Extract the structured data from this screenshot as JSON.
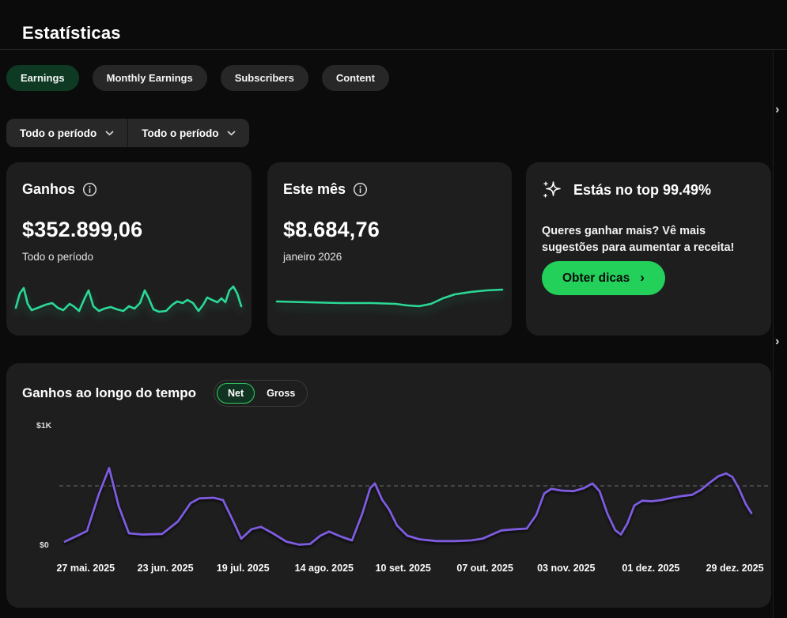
{
  "page": {
    "title": "Estatísticas"
  },
  "tabs": [
    {
      "label": "Earnings",
      "active": true
    },
    {
      "label": "Monthly Earnings",
      "active": false
    },
    {
      "label": "Subscribers",
      "active": false
    },
    {
      "label": "Content",
      "active": false
    }
  ],
  "filters": [
    {
      "label": "Todo o período"
    },
    {
      "label": "Todo o período"
    }
  ],
  "cards": {
    "earnings": {
      "title": "Ganhos",
      "value": "$352.899,06",
      "subtitle": "Todo o período"
    },
    "month": {
      "title": "Este mês",
      "value": "$8.684,76",
      "subtitle": "janeiro 2026"
    },
    "tip": {
      "title": "Estás no top 99.49%",
      "body": "Queres ganhar mais? Vê mais sugestões para aumentar a receita!",
      "button_label": "Obter dicas",
      "button_chevron": "›"
    }
  },
  "chart": {
    "title": "Ganhos ao longo do tempo",
    "toggle_net": "Net",
    "toggle_gross": "Gross"
  },
  "nav": {
    "next_chevron": "›"
  },
  "colors": {
    "page_bg": "#0b0b0b",
    "card_bg": "#1e1e1e",
    "accent_green": "#22d05a",
    "sparkline_green": "#2bd996",
    "chart_purple": "#7d5ce0",
    "active_tab_bg": "#0e3a23",
    "net_pill_border": "#2fd163"
  },
  "chart_data": [
    {
      "type": "sparkline",
      "name": "earnings-all-time-trend",
      "color": "#2bd996",
      "shape_points": [
        [
          0,
          34
        ],
        [
          5,
          16
        ],
        [
          10,
          9
        ],
        [
          15,
          29
        ],
        [
          20,
          37
        ],
        [
          28,
          34
        ],
        [
          38,
          30
        ],
        [
          46,
          28
        ],
        [
          53,
          34
        ],
        [
          60,
          37
        ],
        [
          68,
          29
        ],
        [
          73,
          32
        ],
        [
          80,
          38
        ],
        [
          87,
          22
        ],
        [
          92,
          12
        ],
        [
          98,
          32
        ],
        [
          105,
          38
        ],
        [
          112,
          35
        ],
        [
          120,
          33
        ],
        [
          128,
          36
        ],
        [
          136,
          38
        ],
        [
          143,
          32
        ],
        [
          150,
          35
        ],
        [
          157,
          28
        ],
        [
          163,
          12
        ],
        [
          168,
          22
        ],
        [
          174,
          36
        ],
        [
          181,
          39
        ],
        [
          190,
          38
        ],
        [
          198,
          30
        ],
        [
          204,
          26
        ],
        [
          211,
          28
        ],
        [
          217,
          24
        ],
        [
          224,
          28
        ],
        [
          231,
          38
        ],
        [
          237,
          30
        ],
        [
          242,
          21
        ],
        [
          248,
          24
        ],
        [
          255,
          27
        ],
        [
          260,
          22
        ],
        [
          265,
          27
        ],
        [
          270,
          12
        ],
        [
          275,
          7
        ],
        [
          280,
          16
        ],
        [
          285,
          32
        ]
      ]
    },
    {
      "type": "sparkline",
      "name": "this-month-trend",
      "color": "#2bd996",
      "shape_points": [
        [
          0,
          26
        ],
        [
          40,
          27
        ],
        [
          80,
          28
        ],
        [
          120,
          28
        ],
        [
          150,
          29
        ],
        [
          165,
          31
        ],
        [
          180,
          32
        ],
        [
          195,
          29
        ],
        [
          210,
          22
        ],
        [
          225,
          17
        ],
        [
          245,
          14
        ],
        [
          265,
          12
        ],
        [
          285,
          11
        ]
      ]
    },
    {
      "type": "line",
      "title": "Ganhos ao longo do tempo",
      "ylabel": "",
      "xlabel": "",
      "ylim": [
        0,
        1000
      ],
      "yticks": [
        {
          "label": "$1K",
          "value": 1000
        },
        {
          "label": "$0",
          "value": 0
        }
      ],
      "gridline_value": 500,
      "legend": [
        "Net",
        "Gross"
      ],
      "selected_series": "Net",
      "x_ticks": [
        {
          "label": "27 mai. 2025",
          "pos": 0.037
        },
        {
          "label": "23 jun. 2025",
          "pos": 0.149
        },
        {
          "label": "19 jul. 2025",
          "pos": 0.258
        },
        {
          "label": "14 ago. 2025",
          "pos": 0.372
        },
        {
          "label": "10 set. 2025",
          "pos": 0.483
        },
        {
          "label": "07 out. 2025",
          "pos": 0.598
        },
        {
          "label": "03 nov. 2025",
          "pos": 0.712
        },
        {
          "label": "01 dez. 2025",
          "pos": 0.831
        },
        {
          "label": "29 dez. 2025",
          "pos": 0.949
        }
      ],
      "series": [
        {
          "name": "Net",
          "color": "#7d5ce0",
          "points": [
            [
              7,
              30
            ],
            [
              26,
              90
            ],
            [
              35,
              120
            ],
            [
              50,
              430
            ],
            [
              63,
              650
            ],
            [
              75,
              330
            ],
            [
              88,
              100
            ],
            [
              105,
              90
            ],
            [
              130,
              95
            ],
            [
              150,
              200
            ],
            [
              166,
              355
            ],
            [
              177,
              395
            ],
            [
              195,
              400
            ],
            [
              207,
              380
            ],
            [
              220,
              200
            ],
            [
              230,
              55
            ],
            [
              243,
              135
            ],
            [
              255,
              155
            ],
            [
              270,
              100
            ],
            [
              287,
              30
            ],
            [
              303,
              5
            ],
            [
              317,
              10
            ],
            [
              330,
              80
            ],
            [
              341,
              115
            ],
            [
              357,
              70
            ],
            [
              370,
              40
            ],
            [
              383,
              265
            ],
            [
              393,
              480
            ],
            [
              399,
              520
            ],
            [
              408,
              385
            ],
            [
              417,
              300
            ],
            [
              427,
              165
            ],
            [
              440,
              80
            ],
            [
              455,
              50
            ],
            [
              477,
              35
            ],
            [
              500,
              35
            ],
            [
              520,
              40
            ],
            [
              535,
              55
            ],
            [
              547,
              90
            ],
            [
              559,
              125
            ],
            [
              577,
              135
            ],
            [
              591,
              140
            ],
            [
              603,
              255
            ],
            [
              613,
              435
            ],
            [
              622,
              475
            ],
            [
              635,
              460
            ],
            [
              650,
              455
            ],
            [
              663,
              480
            ],
            [
              674,
              520
            ],
            [
              683,
              455
            ],
            [
              693,
              265
            ],
            [
              703,
              125
            ],
            [
              710,
              90
            ],
            [
              718,
              180
            ],
            [
              727,
              335
            ],
            [
              737,
              375
            ],
            [
              749,
              370
            ],
            [
              761,
              380
            ],
            [
              775,
              400
            ],
            [
              788,
              415
            ],
            [
              800,
              425
            ],
            [
              811,
              465
            ],
            [
              821,
              520
            ],
            [
              833,
              580
            ],
            [
              843,
              605
            ],
            [
              851,
              575
            ],
            [
              859,
              480
            ],
            [
              868,
              345
            ],
            [
              875,
              270
            ]
          ]
        }
      ]
    }
  ]
}
